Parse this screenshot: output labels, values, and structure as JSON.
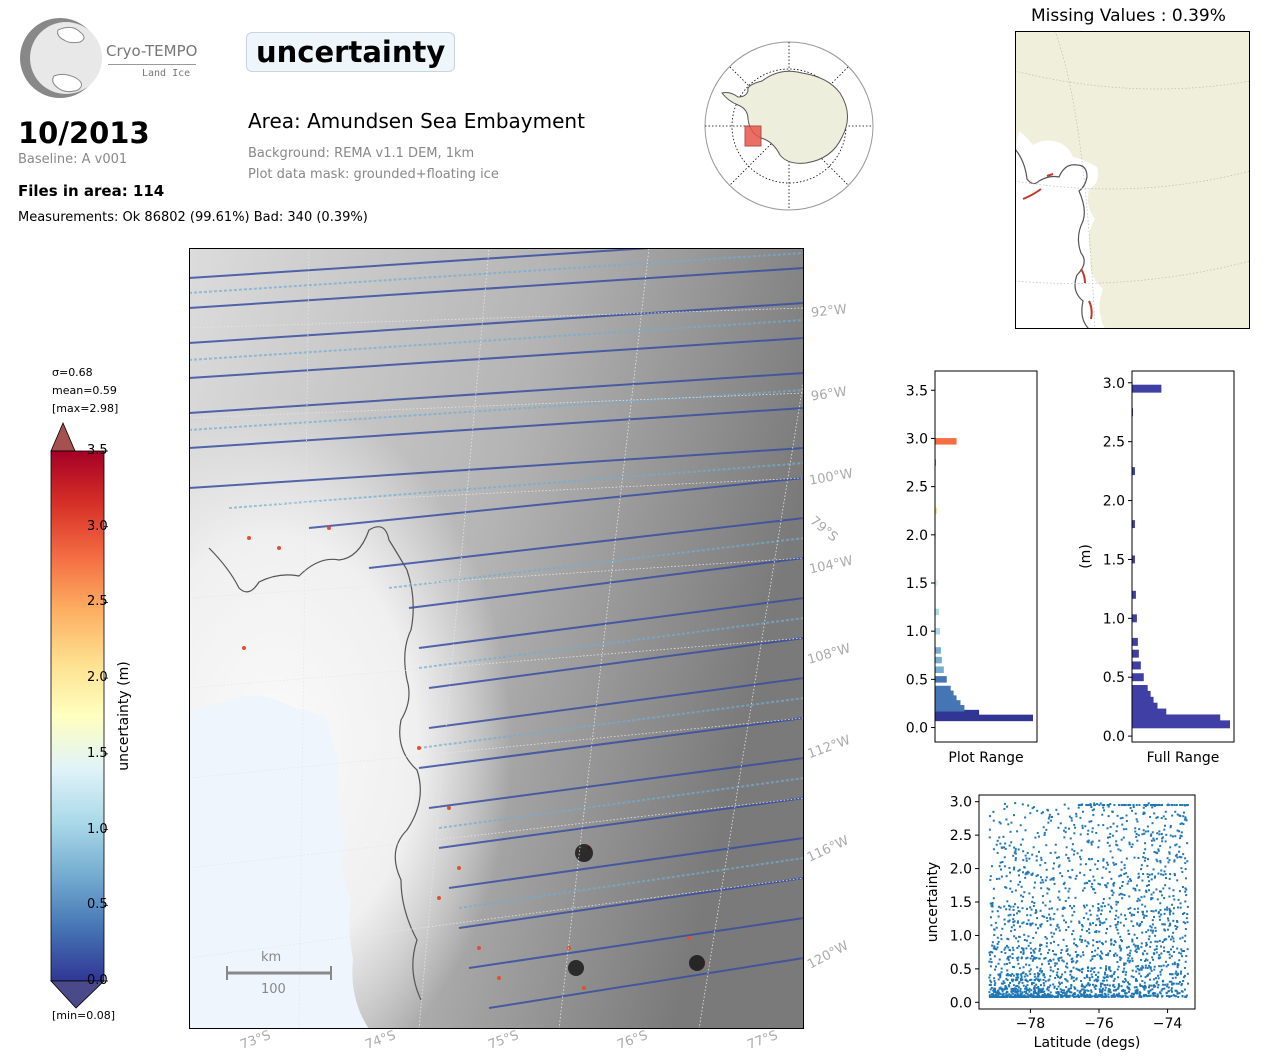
{
  "header": {
    "logo_title": "Cryo-TEMPO",
    "logo_subtitle": "Land Ice",
    "date": "10/2013",
    "baseline": "Baseline: A v001",
    "files": "Files in area: 114",
    "measurements": "Measurements: Ok 86802 (99.61%) Bad: 340 (0.39%)",
    "param_title": "uncertainty",
    "area": "Area: Amundsen Sea Embayment",
    "background": "Background: REMA v1.1 DEM, 1km",
    "mask": "Plot data mask: grounded+floating ice"
  },
  "missing_values": "Missing Values : 0.39%",
  "colorbar": {
    "sigma": "σ=0.68",
    "mean": "mean=0.59",
    "max": "[max=2.98]",
    "min": "[min=0.08]",
    "label": "uncertainty (m)",
    "ticks": [
      "3.5",
      "3.0",
      "2.5",
      "2.0",
      "1.5",
      "1.0",
      "0.5",
      "0.0"
    ],
    "colors": [
      "#313695",
      "#4575b4",
      "#74add1",
      "#abd9e9",
      "#e0f3f8",
      "#ffffbf",
      "#fee090",
      "#fdae61",
      "#f46d43",
      "#d73027",
      "#a50026"
    ]
  },
  "map": {
    "lon_labels": [
      "92°W",
      "96°W",
      "100°W",
      "104°W",
      "108°W",
      "112°W",
      "116°W",
      "120°W"
    ],
    "lat_labels": [
      "73°S",
      "74°S",
      "75°S",
      "76°S",
      "77°S"
    ],
    "lat_label_right": "79°S",
    "scale_unit": "km",
    "scale_value": "100"
  },
  "chart_data": [
    {
      "type": "bar",
      "orientation": "horizontal",
      "xlabel": "Plot Range",
      "ylabel": "",
      "ylim": [
        -0.15,
        3.7
      ],
      "yticks": [
        "0.0",
        "0.5",
        "1.0",
        "1.5",
        "2.0",
        "2.5",
        "3.0",
        "3.5"
      ],
      "bins_center": [
        0.1,
        0.15,
        0.2,
        0.25,
        0.3,
        0.35,
        0.4,
        0.5,
        0.6,
        0.7,
        0.8,
        1.0,
        1.2,
        1.5,
        2.0,
        2.25,
        2.75,
        2.97
      ],
      "values": [
        100,
        45,
        30,
        26,
        22,
        19,
        16,
        12,
        9,
        7,
        6,
        5,
        4,
        3,
        1,
        2,
        1,
        22
      ]
    },
    {
      "type": "bar",
      "orientation": "horizontal",
      "xlabel": "Full Range",
      "ylabel": "(m)",
      "ylim": [
        -0.05,
        3.1
      ],
      "yticks": [
        "0.0",
        "0.5",
        "1.0",
        "1.5",
        "2.0",
        "2.5",
        "3.0"
      ],
      "bins_center": [
        0.1,
        0.15,
        0.2,
        0.25,
        0.3,
        0.35,
        0.4,
        0.5,
        0.6,
        0.7,
        0.8,
        1.0,
        1.2,
        1.5,
        1.8,
        2.25,
        2.75,
        2.95
      ],
      "values": [
        100,
        90,
        35,
        26,
        22,
        19,
        16,
        12,
        9,
        7,
        6,
        5,
        4,
        3,
        3,
        3,
        1,
        30
      ]
    },
    {
      "type": "scatter",
      "xlabel": "Latitude (degs)",
      "ylabel": "uncertainty",
      "xlim": [
        -79.5,
        -73.2
      ],
      "ylim": [
        -0.1,
        3.1
      ],
      "xticks": [
        "−78",
        "−76",
        "−74"
      ],
      "yticks": [
        "0.0",
        "0.5",
        "1.0",
        "1.5",
        "2.0",
        "2.5",
        "3.0"
      ],
      "color": "#1f77b4",
      "x_range": [
        -79.2,
        -73.4
      ],
      "y_range": [
        0.08,
        2.98
      ]
    }
  ]
}
